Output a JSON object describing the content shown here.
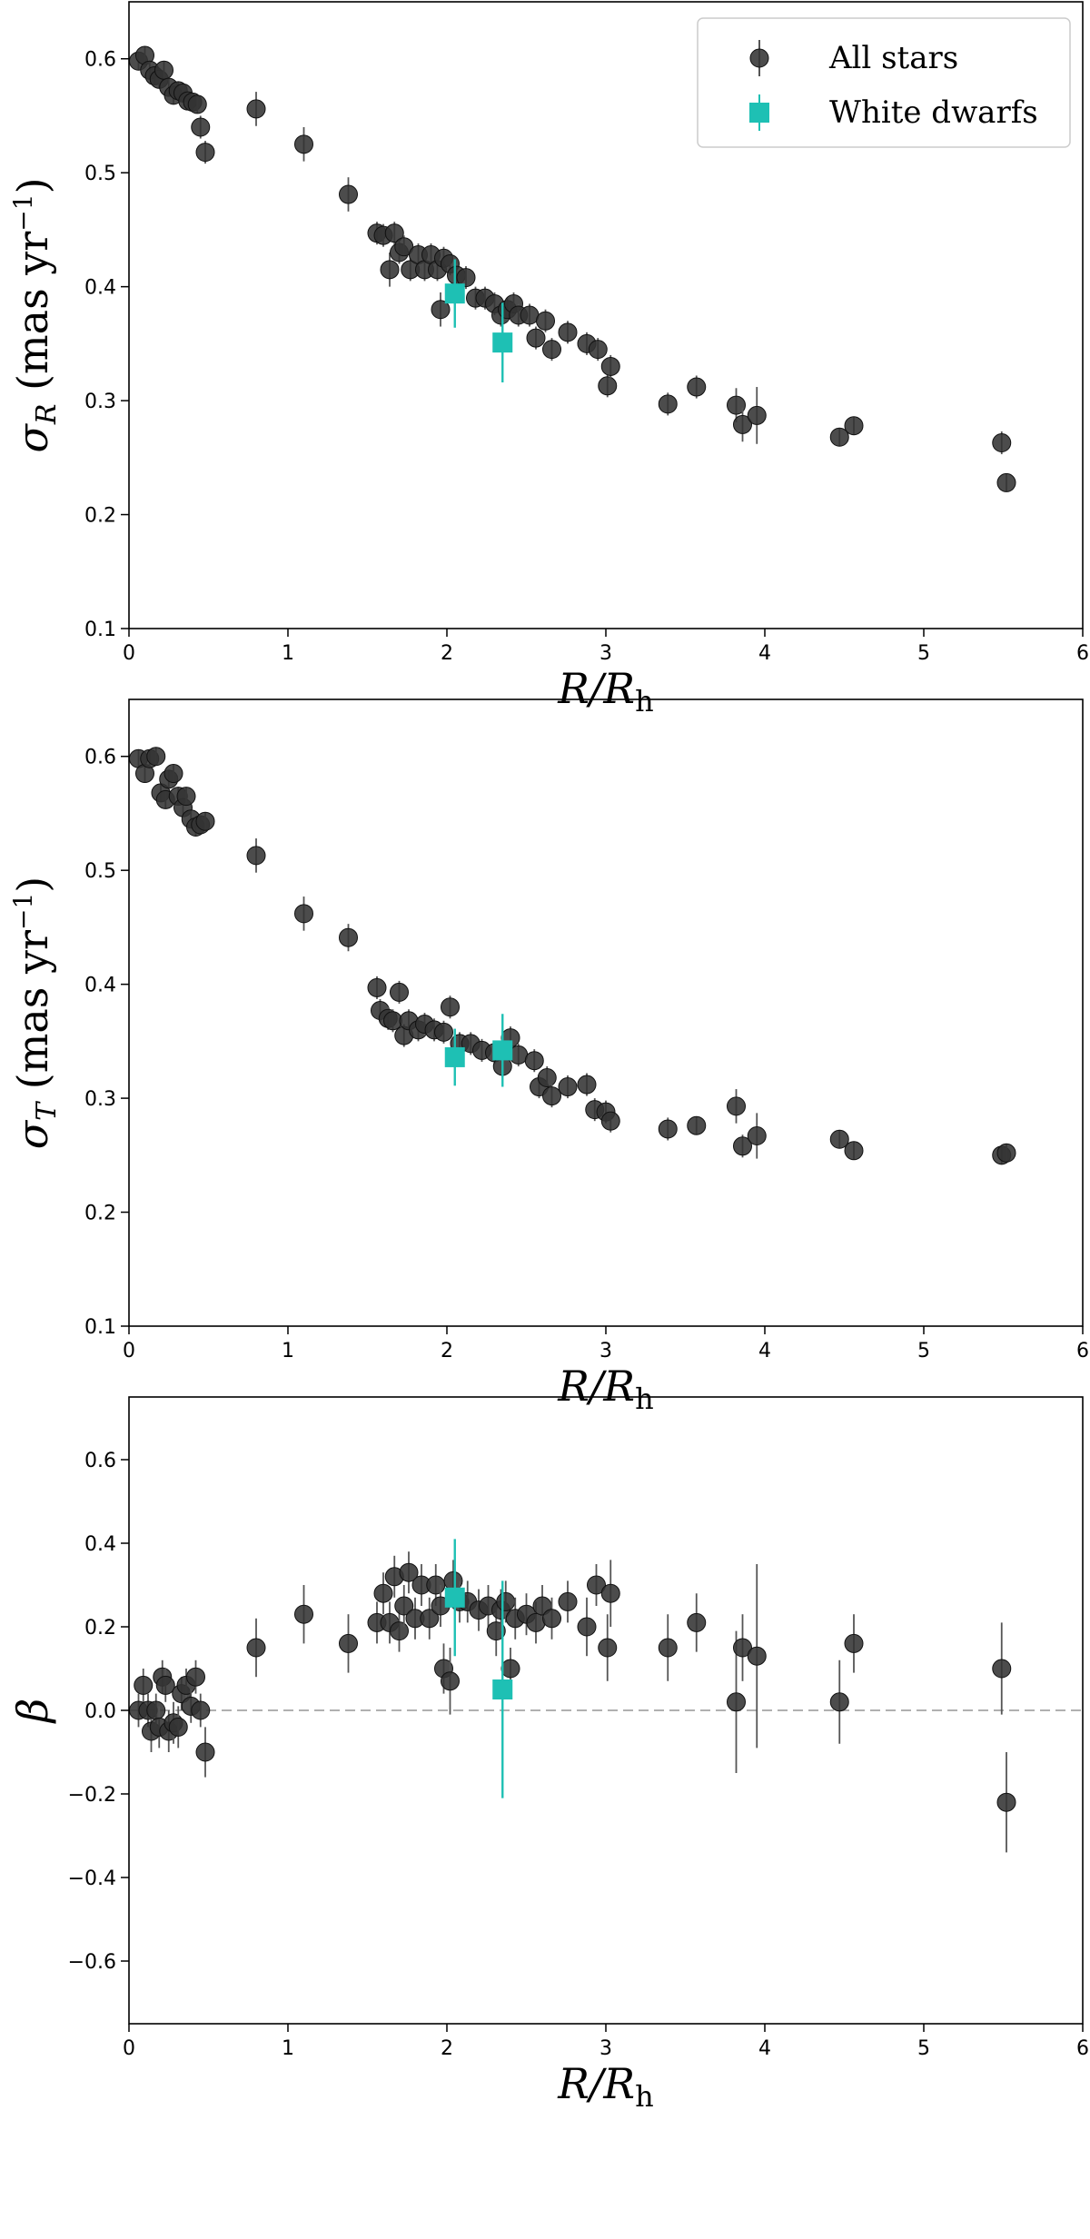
{
  "chart_data": [
    {
      "type": "scatter",
      "xlabel": "R/R",
      "xlabel_sub": "h",
      "ylabel": "σ",
      "ylabel_sub": "R",
      "ylabel_unit": " (mas yr",
      "ylabel_unit_exp": "−1",
      "ylabel_unit_close": ")",
      "xlim": [
        0,
        6
      ],
      "ylim": [
        0.1,
        0.65
      ],
      "xticks": [
        0,
        1,
        2,
        3,
        4,
        5,
        6
      ],
      "yticks": [
        0.1,
        0.2,
        0.3,
        0.4,
        0.5,
        0.6
      ],
      "xtick_labels": [
        "0",
        "1",
        "2",
        "3",
        "4",
        "5",
        "6"
      ],
      "ytick_labels": [
        "0.1",
        "0.2",
        "0.3",
        "0.4",
        "0.5",
        "0.6"
      ],
      "legend": {
        "placement": "top-right",
        "entries": [
          "All stars",
          "White dwarfs"
        ]
      },
      "series": [
        {
          "name": "All stars",
          "color": "#333333",
          "marker": "circle",
          "points": [
            [
              0.06,
              0.598,
              0.008
            ],
            [
              0.1,
              0.603,
              0.008
            ],
            [
              0.13,
              0.59,
              0.008
            ],
            [
              0.16,
              0.585,
              0.008
            ],
            [
              0.19,
              0.582,
              0.008
            ],
            [
              0.22,
              0.59,
              0.008
            ],
            [
              0.25,
              0.575,
              0.008
            ],
            [
              0.28,
              0.568,
              0.008
            ],
            [
              0.31,
              0.572,
              0.008
            ],
            [
              0.34,
              0.57,
              0.008
            ],
            [
              0.37,
              0.563,
              0.008
            ],
            [
              0.4,
              0.562,
              0.008
            ],
            [
              0.43,
              0.56,
              0.008
            ],
            [
              0.45,
              0.54,
              0.01
            ],
            [
              0.48,
              0.518,
              0.01
            ],
            [
              0.8,
              0.556,
              0.015
            ],
            [
              1.1,
              0.525,
              0.015
            ],
            [
              1.38,
              0.481,
              0.015
            ],
            [
              1.56,
              0.447,
              0.01
            ],
            [
              1.6,
              0.445,
              0.01
            ],
            [
              1.64,
              0.415,
              0.015
            ],
            [
              1.67,
              0.447,
              0.01
            ],
            [
              1.7,
              0.43,
              0.01
            ],
            [
              1.73,
              0.435,
              0.01
            ],
            [
              1.77,
              0.415,
              0.01
            ],
            [
              1.82,
              0.428,
              0.01
            ],
            [
              1.86,
              0.415,
              0.01
            ],
            [
              1.9,
              0.428,
              0.01
            ],
            [
              1.94,
              0.415,
              0.01
            ],
            [
              1.96,
              0.38,
              0.015
            ],
            [
              1.98,
              0.425,
              0.01
            ],
            [
              2.02,
              0.42,
              0.01
            ],
            [
              2.06,
              0.41,
              0.01
            ],
            [
              2.12,
              0.408,
              0.01
            ],
            [
              2.18,
              0.39,
              0.01
            ],
            [
              2.24,
              0.39,
              0.01
            ],
            [
              2.3,
              0.385,
              0.01
            ],
            [
              2.34,
              0.375,
              0.01
            ],
            [
              2.38,
              0.38,
              0.01
            ],
            [
              2.42,
              0.385,
              0.01
            ],
            [
              2.45,
              0.375,
              0.01
            ],
            [
              2.52,
              0.375,
              0.01
            ],
            [
              2.56,
              0.355,
              0.01
            ],
            [
              2.62,
              0.37,
              0.01
            ],
            [
              2.66,
              0.345,
              0.01
            ],
            [
              2.76,
              0.36,
              0.01
            ],
            [
              2.88,
              0.35,
              0.01
            ],
            [
              2.95,
              0.345,
              0.01
            ],
            [
              3.01,
              0.313,
              0.01
            ],
            [
              3.03,
              0.33,
              0.01
            ],
            [
              3.39,
              0.297,
              0.01
            ],
            [
              3.57,
              0.312,
              0.01
            ],
            [
              3.82,
              0.296,
              0.015
            ],
            [
              3.86,
              0.279,
              0.015
            ],
            [
              3.95,
              0.287,
              0.025
            ],
            [
              4.47,
              0.268,
              0.008
            ],
            [
              4.56,
              0.278,
              0.008
            ],
            [
              5.49,
              0.263,
              0.01
            ],
            [
              5.52,
              0.228,
              0.008
            ]
          ]
        },
        {
          "name": "White dwarfs",
          "color": "#1ec0b4",
          "marker": "square",
          "points": [
            [
              2.05,
              0.394,
              0.03
            ],
            [
              2.35,
              0.351,
              0.035
            ]
          ]
        }
      ]
    },
    {
      "type": "scatter",
      "xlabel": "R/R",
      "xlabel_sub": "h",
      "ylabel": "σ",
      "ylabel_sub": "T",
      "ylabel_unit": " (mas yr",
      "ylabel_unit_exp": "−1",
      "ylabel_unit_close": ")",
      "xlim": [
        0,
        6
      ],
      "ylim": [
        0.1,
        0.65
      ],
      "xticks": [
        0,
        1,
        2,
        3,
        4,
        5,
        6
      ],
      "yticks": [
        0.1,
        0.2,
        0.3,
        0.4,
        0.5,
        0.6
      ],
      "xtick_labels": [
        "0",
        "1",
        "2",
        "3",
        "4",
        "5",
        "6"
      ],
      "ytick_labels": [
        "0.1",
        "0.2",
        "0.3",
        "0.4",
        "0.5",
        "0.6"
      ],
      "series": [
        {
          "name": "All stars",
          "color": "#333333",
          "marker": "circle",
          "points": [
            [
              0.06,
              0.598,
              0.008
            ],
            [
              0.1,
              0.585,
              0.008
            ],
            [
              0.13,
              0.598,
              0.008
            ],
            [
              0.17,
              0.6,
              0.008
            ],
            [
              0.2,
              0.568,
              0.008
            ],
            [
              0.23,
              0.562,
              0.008
            ],
            [
              0.25,
              0.58,
              0.008
            ],
            [
              0.28,
              0.585,
              0.008
            ],
            [
              0.31,
              0.565,
              0.008
            ],
            [
              0.34,
              0.555,
              0.008
            ],
            [
              0.36,
              0.565,
              0.008
            ],
            [
              0.39,
              0.545,
              0.008
            ],
            [
              0.42,
              0.538,
              0.008
            ],
            [
              0.45,
              0.54,
              0.008
            ],
            [
              0.48,
              0.543,
              0.008
            ],
            [
              0.8,
              0.513,
              0.015
            ],
            [
              1.1,
              0.462,
              0.015
            ],
            [
              1.38,
              0.441,
              0.012
            ],
            [
              1.56,
              0.397,
              0.01
            ],
            [
              1.58,
              0.377,
              0.01
            ],
            [
              1.63,
              0.37,
              0.01
            ],
            [
              1.66,
              0.368,
              0.01
            ],
            [
              1.7,
              0.393,
              0.01
            ],
            [
              1.73,
              0.355,
              0.01
            ],
            [
              1.76,
              0.368,
              0.01
            ],
            [
              1.82,
              0.36,
              0.01
            ],
            [
              1.86,
              0.365,
              0.01
            ],
            [
              1.92,
              0.36,
              0.01
            ],
            [
              1.98,
              0.358,
              0.01
            ],
            [
              2.02,
              0.38,
              0.01
            ],
            [
              2.08,
              0.348,
              0.01
            ],
            [
              2.15,
              0.348,
              0.01
            ],
            [
              2.22,
              0.342,
              0.01
            ],
            [
              2.3,
              0.34,
              0.01
            ],
            [
              2.35,
              0.328,
              0.01
            ],
            [
              2.4,
              0.353,
              0.01
            ],
            [
              2.45,
              0.338,
              0.01
            ],
            [
              2.55,
              0.333,
              0.01
            ],
            [
              2.58,
              0.31,
              0.01
            ],
            [
              2.63,
              0.318,
              0.01
            ],
            [
              2.66,
              0.302,
              0.01
            ],
            [
              2.76,
              0.31,
              0.01
            ],
            [
              2.88,
              0.312,
              0.01
            ],
            [
              2.93,
              0.29,
              0.01
            ],
            [
              3.0,
              0.288,
              0.01
            ],
            [
              3.03,
              0.28,
              0.01
            ],
            [
              3.39,
              0.273,
              0.01
            ],
            [
              3.57,
              0.276,
              0.008
            ],
            [
              3.82,
              0.293,
              0.015
            ],
            [
              3.86,
              0.258,
              0.01
            ],
            [
              3.95,
              0.267,
              0.02
            ],
            [
              4.47,
              0.264,
              0.008
            ],
            [
              4.56,
              0.254,
              0.008
            ],
            [
              5.49,
              0.25,
              0.008
            ],
            [
              5.52,
              0.252,
              0.008
            ]
          ]
        },
        {
          "name": "White dwarfs",
          "color": "#1ec0b4",
          "marker": "square",
          "points": [
            [
              2.05,
              0.336,
              0.025
            ],
            [
              2.35,
              0.342,
              0.032
            ]
          ]
        }
      ]
    },
    {
      "type": "scatter",
      "xlabel": "R/R",
      "xlabel_sub": "h",
      "ylabel": "β",
      "xlim": [
        0,
        6
      ],
      "ylim": [
        -0.75,
        0.75
      ],
      "xticks": [
        0,
        1,
        2,
        3,
        4,
        5,
        6
      ],
      "yticks": [
        -0.6,
        -0.4,
        -0.2,
        0.0,
        0.2,
        0.4,
        0.6
      ],
      "xtick_labels": [
        "0",
        "1",
        "2",
        "3",
        "4",
        "5",
        "6"
      ],
      "ytick_labels": [
        "−0.6",
        "−0.4",
        "−0.2",
        "0.0",
        "0.2",
        "0.4",
        "0.6"
      ],
      "reference_line": {
        "y": 0.0,
        "style": "dashed",
        "color": "#b0b0b0"
      },
      "series": [
        {
          "name": "All stars",
          "color": "#333333",
          "marker": "circle",
          "points": [
            [
              0.06,
              0.0,
              0.04
            ],
            [
              0.09,
              0.06,
              0.04
            ],
            [
              0.12,
              0.0,
              0.04
            ],
            [
              0.14,
              -0.05,
              0.05
            ],
            [
              0.17,
              0.0,
              0.04
            ],
            [
              0.19,
              -0.04,
              0.05
            ],
            [
              0.21,
              0.08,
              0.04
            ],
            [
              0.23,
              0.06,
              0.04
            ],
            [
              0.25,
              -0.05,
              0.05
            ],
            [
              0.28,
              -0.03,
              0.05
            ],
            [
              0.31,
              -0.04,
              0.05
            ],
            [
              0.33,
              0.04,
              0.04
            ],
            [
              0.36,
              0.06,
              0.04
            ],
            [
              0.39,
              0.01,
              0.04
            ],
            [
              0.42,
              0.08,
              0.04
            ],
            [
              0.45,
              0.0,
              0.04
            ],
            [
              0.48,
              -0.1,
              0.06
            ],
            [
              0.8,
              0.15,
              0.07
            ],
            [
              1.1,
              0.23,
              0.07
            ],
            [
              1.38,
              0.16,
              0.07
            ],
            [
              1.56,
              0.21,
              0.05
            ],
            [
              1.6,
              0.28,
              0.05
            ],
            [
              1.64,
              0.21,
              0.05
            ],
            [
              1.67,
              0.32,
              0.05
            ],
            [
              1.7,
              0.19,
              0.05
            ],
            [
              1.73,
              0.25,
              0.05
            ],
            [
              1.76,
              0.33,
              0.05
            ],
            [
              1.8,
              0.22,
              0.05
            ],
            [
              1.84,
              0.3,
              0.05
            ],
            [
              1.89,
              0.22,
              0.05
            ],
            [
              1.93,
              0.3,
              0.05
            ],
            [
              1.96,
              0.25,
              0.05
            ],
            [
              1.98,
              0.1,
              0.06
            ],
            [
              2.02,
              0.07,
              0.08
            ],
            [
              2.04,
              0.31,
              0.05
            ],
            [
              2.08,
              0.26,
              0.05
            ],
            [
              2.13,
              0.26,
              0.05
            ],
            [
              2.2,
              0.24,
              0.05
            ],
            [
              2.26,
              0.25,
              0.05
            ],
            [
              2.31,
              0.19,
              0.06
            ],
            [
              2.34,
              0.24,
              0.05
            ],
            [
              2.37,
              0.26,
              0.05
            ],
            [
              2.4,
              0.1,
              0.05
            ],
            [
              2.43,
              0.22,
              0.05
            ],
            [
              2.5,
              0.23,
              0.05
            ],
            [
              2.56,
              0.21,
              0.05
            ],
            [
              2.6,
              0.25,
              0.05
            ],
            [
              2.66,
              0.22,
              0.05
            ],
            [
              2.76,
              0.26,
              0.05
            ],
            [
              2.88,
              0.2,
              0.07
            ],
            [
              2.94,
              0.3,
              0.05
            ],
            [
              3.01,
              0.15,
              0.08
            ],
            [
              3.03,
              0.28,
              0.08
            ],
            [
              3.39,
              0.15,
              0.08
            ],
            [
              3.57,
              0.21,
              0.07
            ],
            [
              3.82,
              0.02,
              0.17
            ],
            [
              3.86,
              0.15,
              0.08
            ],
            [
              3.95,
              0.13,
              0.22
            ],
            [
              4.47,
              0.02,
              0.1
            ],
            [
              4.56,
              0.16,
              0.07
            ],
            [
              5.49,
              0.1,
              0.11
            ],
            [
              5.52,
              -0.22,
              0.12
            ]
          ]
        },
        {
          "name": "White dwarfs",
          "color": "#1ec0b4",
          "marker": "square",
          "points": [
            [
              2.05,
              0.27,
              0.14
            ],
            [
              2.35,
              0.05,
              0.26
            ]
          ]
        }
      ]
    }
  ]
}
